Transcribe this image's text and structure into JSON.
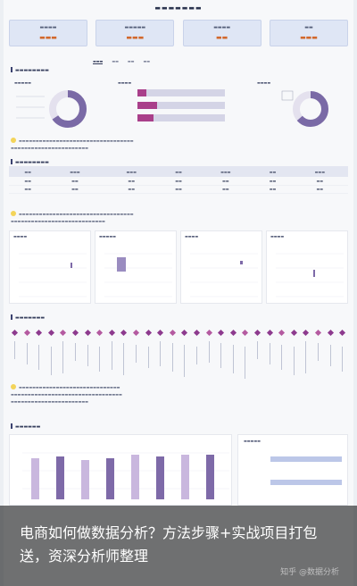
{
  "colors": {
    "accent": "#8d3a8e",
    "kpi_value": "#d2682c",
    "bar_light": "#c9b7de",
    "bar_dark": "#7e6aa8",
    "donut": "#7a6aa6"
  },
  "overlay": {
    "caption": "电商如何做数据分析？方法步骤+实战项目打包送，资深分析师整理",
    "watermark": "知乎 @数据分析"
  }
}
